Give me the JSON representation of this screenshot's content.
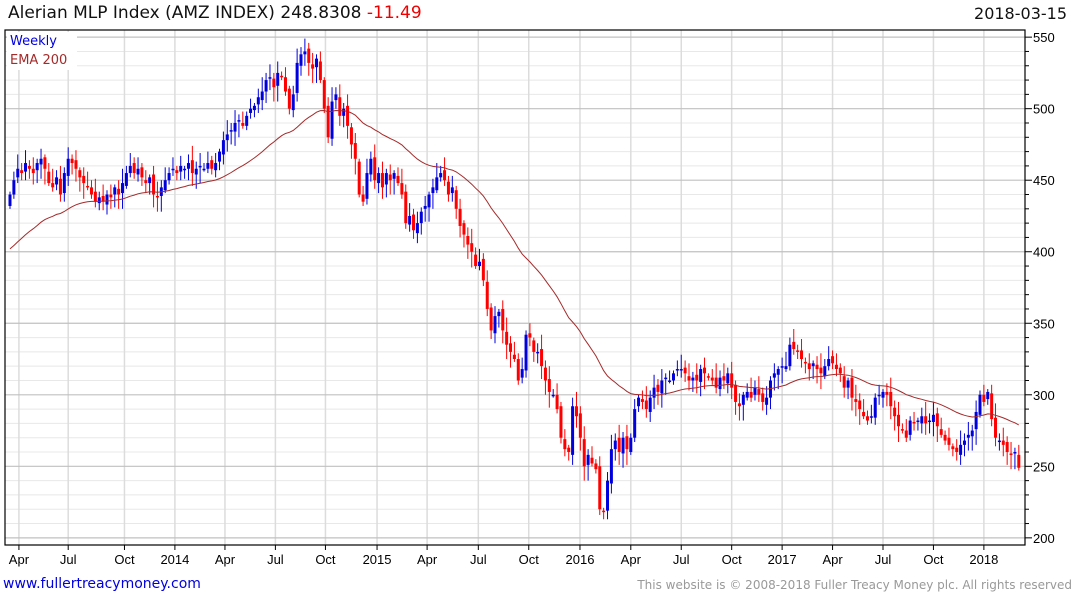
{
  "header": {
    "name": "Alerian MLP Index (AMZ INDEX)",
    "last": "248.8308",
    "change": "-11.49",
    "date": "2018-03-15"
  },
  "footer": {
    "site": "www.fullertreacymoney.com",
    "copyright": "This website is © 2008-2018 Fuller Treacy Money plc. All rights reserved"
  },
  "colors": {
    "up": "#0000dd",
    "down": "#ff0000",
    "ema": "#a52a2a",
    "grid_major": "#c0c0c0",
    "grid_minor": "#e8e8e8"
  },
  "chart_data": {
    "type": "candlestick",
    "title": "Alerian MLP Index (AMZ INDEX)",
    "interval_label": "Weekly",
    "indicator_label": "EMA 200",
    "ylim": [
      195,
      555
    ],
    "yticks": [
      200,
      250,
      300,
      350,
      400,
      450,
      500,
      550
    ],
    "ema_start": 402,
    "ema_weekly_period": 40,
    "xticks": [
      {
        "label": "Apr",
        "week": 2.3
      },
      {
        "label": "Jul",
        "week": 15
      },
      {
        "label": "Oct",
        "week": 29.5
      },
      {
        "label": "2014",
        "week": 42.5
      },
      {
        "label": "Apr",
        "week": 55.4
      },
      {
        "label": "Jul",
        "week": 68.4
      },
      {
        "label": "Oct",
        "week": 81.3
      },
      {
        "label": "2015",
        "week": 94.6
      },
      {
        "label": "Apr",
        "week": 107.5
      },
      {
        "label": "Jul",
        "week": 120.7
      },
      {
        "label": "Oct",
        "week": 133.7
      },
      {
        "label": "2016",
        "week": 146.9
      },
      {
        "label": "Apr",
        "week": 160
      },
      {
        "label": "Jul",
        "week": 173
      },
      {
        "label": "Oct",
        "week": 186
      },
      {
        "label": "2017",
        "week": 199
      },
      {
        "label": "Apr",
        "week": 212
      },
      {
        "label": "Jul",
        "week": 225
      },
      {
        "label": "Oct",
        "week": 238
      },
      {
        "label": "2018",
        "week": 251
      }
    ],
    "closes": [
      440,
      450,
      458,
      455,
      462,
      458,
      455,
      462,
      465,
      458,
      448,
      445,
      452,
      440,
      455,
      465,
      462,
      458,
      452,
      448,
      445,
      440,
      435,
      438,
      435,
      440,
      438,
      445,
      440,
      448,
      455,
      460,
      455,
      458,
      452,
      448,
      452,
      440,
      438,
      445,
      450,
      455,
      458,
      455,
      460,
      458,
      462,
      455,
      458,
      460,
      458,
      462,
      458,
      462,
      470,
      478,
      482,
      485,
      490,
      492,
      488,
      495,
      500,
      502,
      508,
      512,
      520,
      522,
      515,
      525,
      522,
      512,
      500,
      510,
      532,
      538,
      540,
      532,
      528,
      535,
      520,
      500,
      480,
      505,
      510,
      495,
      500,
      488,
      475,
      465,
      440,
      435,
      455,
      465,
      450,
      455,
      445,
      455,
      450,
      455,
      448,
      440,
      420,
      425,
      415,
      420,
      428,
      432,
      440,
      445,
      452,
      455,
      450,
      440,
      445,
      430,
      418,
      412,
      405,
      400,
      390,
      393,
      380,
      360,
      345,
      355,
      358,
      345,
      335,
      330,
      325,
      310,
      318,
      342,
      340,
      330,
      330,
      320,
      310,
      302,
      300,
      290,
      270,
      262,
      260,
      292,
      285,
      270,
      250,
      258,
      252,
      248,
      220,
      218,
      240,
      262,
      268,
      260,
      270,
      262,
      270,
      290,
      298,
      295,
      290,
      298,
      305,
      302,
      310,
      312,
      310,
      315,
      318,
      318,
      315,
      310,
      312,
      310,
      318,
      315,
      312,
      310,
      305,
      312,
      310,
      315,
      305,
      295,
      292,
      300,
      302,
      298,
      305,
      300,
      295,
      298,
      310,
      315,
      318,
      320,
      320,
      335,
      332,
      330,
      325,
      322,
      318,
      322,
      318,
      315,
      320,
      325,
      322,
      318,
      315,
      305,
      310,
      298,
      295,
      290,
      285,
      282,
      285,
      298,
      300,
      302,
      300,
      292,
      285,
      278,
      275,
      270,
      282,
      280,
      282,
      285,
      280,
      282,
      286,
      278,
      272,
      268,
      265,
      262,
      260,
      265,
      268,
      272,
      275,
      288,
      300,
      295,
      302,
      283,
      270,
      268,
      265,
      260,
      258,
      260,
      249
    ]
  }
}
